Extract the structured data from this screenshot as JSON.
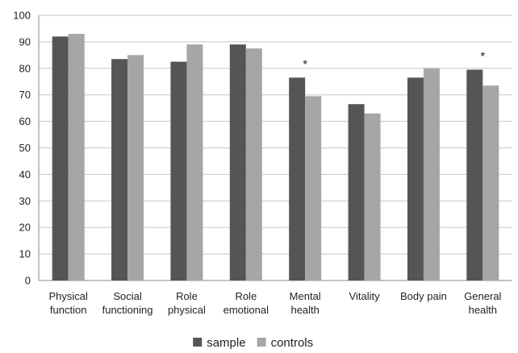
{
  "chart_data": {
    "type": "bar",
    "categories": [
      [
        "Physical",
        "function"
      ],
      [
        "Social",
        "functioning"
      ],
      [
        "Role",
        "physical"
      ],
      [
        "Role",
        "emotional"
      ],
      [
        "Mental",
        "health"
      ],
      [
        "Vitality"
      ],
      [
        "Body pain"
      ],
      [
        "General",
        "health"
      ]
    ],
    "series": [
      {
        "name": "sample",
        "color": "#555555",
        "values": [
          92,
          83.5,
          82.5,
          89,
          76.5,
          66.5,
          76.5,
          79.5
        ]
      },
      {
        "name": "controls",
        "color": "#a6a6a6",
        "values": [
          93,
          85,
          89,
          87.5,
          69.5,
          63,
          80,
          73.5
        ]
      }
    ],
    "annotations": [
      {
        "category_index": 4,
        "text": "*"
      },
      {
        "category_index": 7,
        "text": "*"
      }
    ],
    "ylim": [
      0,
      100
    ],
    "yticks": [
      0,
      10,
      20,
      30,
      40,
      50,
      60,
      70,
      80,
      90,
      100
    ],
    "grid": true,
    "legend_position": "bottom",
    "title": "",
    "xlabel": "",
    "ylabel": ""
  }
}
